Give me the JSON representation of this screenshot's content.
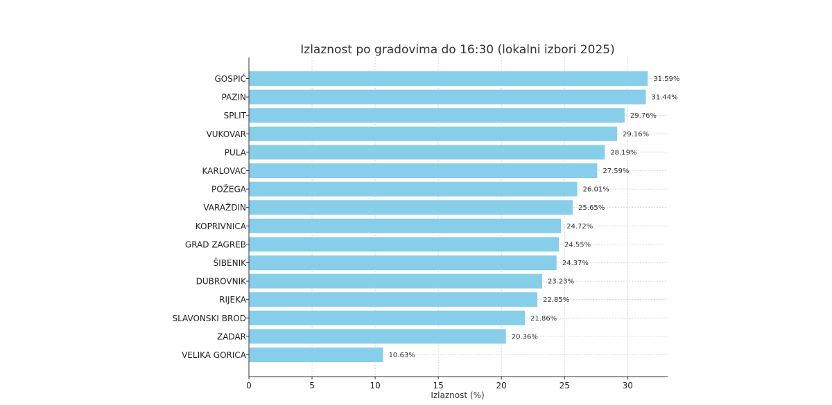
{
  "colors": {
    "bar": "#87ceeb",
    "grid": "#cccccc",
    "axis": "#333333"
  },
  "chart_data": {
    "type": "bar",
    "orientation": "horizontal",
    "title": "Izlaznost po gradovima do 16:30 (lokalni izbori 2025)",
    "xlabel": "Izlaznost (%)",
    "ylabel": "",
    "xlim": [
      0,
      33.17
    ],
    "xticks": [
      0,
      5,
      10,
      15,
      20,
      25,
      30
    ],
    "grid": true,
    "categories": [
      "GOSPIĆ",
      "PAZIN",
      "SPLIT",
      "VUKOVAR",
      "PULA",
      "KARLOVAC",
      "POŽEGA",
      "VARAŽDIN",
      "KOPRIVNICA",
      "GRAD ZAGREB",
      "ŠIBENIK",
      "DUBROVNIK",
      "RIJEKA",
      "SLAVONSKI BROD",
      "ZADAR",
      "VELIKA GORICA"
    ],
    "values": [
      31.59,
      31.44,
      29.76,
      29.16,
      28.19,
      27.59,
      26.01,
      25.65,
      24.72,
      24.55,
      24.37,
      23.23,
      22.85,
      21.86,
      20.36,
      10.63
    ],
    "value_labels": [
      "31.59%",
      "31.44%",
      "29.76%",
      "29.16%",
      "28.19%",
      "27.59%",
      "26.01%",
      "25.65%",
      "24.72%",
      "24.55%",
      "24.37%",
      "23.23%",
      "22.85%",
      "21.86%",
      "20.36%",
      "10.63%"
    ]
  }
}
